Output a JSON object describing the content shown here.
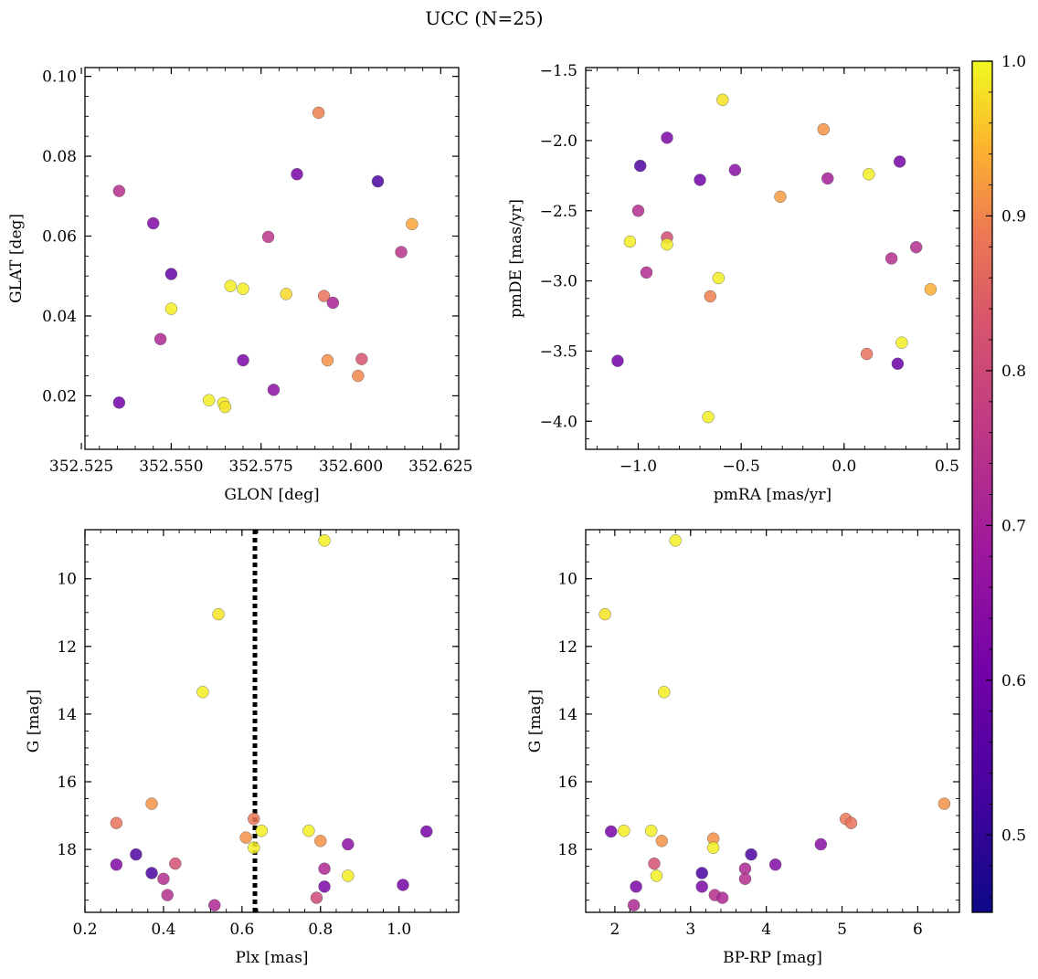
{
  "figure": {
    "title": "UCC (N=25)"
  },
  "colorbar": {
    "min": 0.45,
    "max": 1.0,
    "ticks": [
      "0.5",
      "0.6",
      "0.7",
      "0.8",
      "0.9",
      "1.0"
    ],
    "tick_values": [
      0.5,
      0.6,
      0.7,
      0.8,
      0.9,
      1.0
    ],
    "colormap": "plasma"
  },
  "chart_data": [
    {
      "type": "scatter",
      "id": "glon-glat",
      "xlabel": "GLON [deg]",
      "ylabel": "GLAT [deg]",
      "xlim": [
        352.526,
        352.63
      ],
      "ylim": [
        0.0066,
        0.1022
      ],
      "xticks": [
        352.525,
        352.55,
        352.575,
        352.6,
        352.625
      ],
      "xtick_labels": [
        "352.525",
        "352.550",
        "352.575",
        "352.600",
        "352.625"
      ],
      "yticks": [
        0.02,
        0.04,
        0.06,
        0.08,
        0.1
      ],
      "ytick_labels": [
        "0.02",
        "0.04",
        "0.06",
        "0.08",
        "0.10"
      ],
      "points": [
        {
          "x": 352.5355,
          "y": 0.0713,
          "p": 0.7
        },
        {
          "x": 352.545,
          "y": 0.0632,
          "p": 0.58
        },
        {
          "x": 352.55,
          "y": 0.0505,
          "p": 0.52
        },
        {
          "x": 352.55,
          "y": 0.0418,
          "p": 0.99
        },
        {
          "x": 352.547,
          "y": 0.0342,
          "p": 0.68
        },
        {
          "x": 352.5355,
          "y": 0.0183,
          "p": 0.55
        },
        {
          "x": 352.585,
          "y": 0.0755,
          "p": 0.56
        },
        {
          "x": 352.6075,
          "y": 0.0737,
          "p": 0.47
        },
        {
          "x": 352.591,
          "y": 0.0909,
          "p": 0.88
        },
        {
          "x": 352.617,
          "y": 0.063,
          "p": 0.92
        },
        {
          "x": 352.614,
          "y": 0.056,
          "p": 0.71
        },
        {
          "x": 352.577,
          "y": 0.0598,
          "p": 0.72
        },
        {
          "x": 352.5665,
          "y": 0.0475,
          "p": 0.99
        },
        {
          "x": 352.57,
          "y": 0.0468,
          "p": 0.99
        },
        {
          "x": 352.582,
          "y": 0.0455,
          "p": 0.97
        },
        {
          "x": 352.5925,
          "y": 0.045,
          "p": 0.86
        },
        {
          "x": 352.595,
          "y": 0.0433,
          "p": 0.67
        },
        {
          "x": 352.5935,
          "y": 0.0289,
          "p": 0.9
        },
        {
          "x": 352.603,
          "y": 0.0292,
          "p": 0.8
        },
        {
          "x": 352.602,
          "y": 0.025,
          "p": 0.89
        },
        {
          "x": 352.57,
          "y": 0.0289,
          "p": 0.57
        },
        {
          "x": 352.5785,
          "y": 0.0215,
          "p": 0.6
        },
        {
          "x": 352.5605,
          "y": 0.0189,
          "p": 0.99
        },
        {
          "x": 352.5645,
          "y": 0.0182,
          "p": 0.99
        },
        {
          "x": 352.565,
          "y": 0.0172,
          "p": 0.98
        }
      ]
    },
    {
      "type": "scatter",
      "id": "pmra-pmde",
      "xlabel": "pmRA [mas/yr]",
      "ylabel": "pmDE [mas/yr]",
      "xlim": [
        -1.255,
        0.56
      ],
      "ylim": [
        -4.2,
        -1.48
      ],
      "xticks": [
        -1.0,
        -0.5,
        0.0,
        0.5
      ],
      "xtick_labels": [
        "−1.0",
        "−0.5",
        "0.0",
        "0.5"
      ],
      "yticks": [
        -4.0,
        -3.5,
        -3.0,
        -2.5,
        -2.0,
        -1.5
      ],
      "ytick_labels": [
        "−4.0",
        "−3.5",
        "−3.0",
        "−2.5",
        "−2.0",
        "−1.5"
      ],
      "points": [
        {
          "x": -0.59,
          "y": -1.71,
          "p": 0.98
        },
        {
          "x": -0.1,
          "y": -1.92,
          "p": 0.9
        },
        {
          "x": -0.86,
          "y": -1.98,
          "p": 0.57
        },
        {
          "x": -0.99,
          "y": -2.18,
          "p": 0.48
        },
        {
          "x": -0.53,
          "y": -2.21,
          "p": 0.6
        },
        {
          "x": 0.12,
          "y": -2.24,
          "p": 0.99
        },
        {
          "x": 0.27,
          "y": -2.15,
          "p": 0.56
        },
        {
          "x": -0.7,
          "y": -2.28,
          "p": 0.55
        },
        {
          "x": -0.08,
          "y": -2.27,
          "p": 0.66
        },
        {
          "x": -0.31,
          "y": -2.4,
          "p": 0.91
        },
        {
          "x": -1.0,
          "y": -2.5,
          "p": 0.7
        },
        {
          "x": -1.04,
          "y": -2.72,
          "p": 0.99
        },
        {
          "x": -0.86,
          "y": -2.69,
          "p": 0.78
        },
        {
          "x": -0.86,
          "y": -2.74,
          "p": 0.99
        },
        {
          "x": -0.96,
          "y": -2.94,
          "p": 0.69
        },
        {
          "x": 0.35,
          "y": -2.76,
          "p": 0.7
        },
        {
          "x": 0.23,
          "y": -2.84,
          "p": 0.7
        },
        {
          "x": -0.61,
          "y": -2.98,
          "p": 0.99
        },
        {
          "x": -0.65,
          "y": -3.11,
          "p": 0.88
        },
        {
          "x": 0.42,
          "y": -3.06,
          "p": 0.93
        },
        {
          "x": 0.11,
          "y": -3.52,
          "p": 0.86
        },
        {
          "x": 0.28,
          "y": -3.44,
          "p": 0.99
        },
        {
          "x": -1.1,
          "y": -3.57,
          "p": 0.55
        },
        {
          "x": 0.26,
          "y": -3.59,
          "p": 0.53
        },
        {
          "x": -0.66,
          "y": -3.97,
          "p": 0.99
        }
      ]
    },
    {
      "type": "scatter",
      "id": "plx-g",
      "xlabel": "Plx [mas]",
      "ylabel": "G [mag]",
      "xlim": [
        0.2,
        1.152
      ],
      "ylim": [
        19.86,
        8.55
      ],
      "xticks": [
        0.2,
        0.4,
        0.6,
        0.8,
        1.0
      ],
      "xtick_labels": [
        "0.2",
        "0.4",
        "0.6",
        "0.8",
        "1.0"
      ],
      "yticks": [
        10,
        12,
        14,
        16,
        18
      ],
      "ytick_labels": [
        "10",
        "12",
        "14",
        "16",
        "18"
      ],
      "vline": 0.633,
      "points": [
        {
          "x": 0.81,
          "y": 8.87,
          "p": 0.99
        },
        {
          "x": 0.54,
          "y": 11.05,
          "p": 0.98
        },
        {
          "x": 0.5,
          "y": 13.35,
          "p": 0.99
        },
        {
          "x": 0.37,
          "y": 16.65,
          "p": 0.9
        },
        {
          "x": 0.28,
          "y": 17.22,
          "p": 0.86
        },
        {
          "x": 0.63,
          "y": 17.1,
          "p": 0.87
        },
        {
          "x": 0.65,
          "y": 17.45,
          "p": 0.99
        },
        {
          "x": 0.61,
          "y": 17.65,
          "p": 0.9
        },
        {
          "x": 0.77,
          "y": 17.45,
          "p": 0.99
        },
        {
          "x": 0.8,
          "y": 17.75,
          "p": 0.9
        },
        {
          "x": 0.63,
          "y": 17.95,
          "p": 0.99
        },
        {
          "x": 1.07,
          "y": 17.47,
          "p": 0.56
        },
        {
          "x": 0.87,
          "y": 17.85,
          "p": 0.6
        },
        {
          "x": 0.33,
          "y": 18.15,
          "p": 0.48
        },
        {
          "x": 0.28,
          "y": 18.45,
          "p": 0.58
        },
        {
          "x": 0.43,
          "y": 18.42,
          "p": 0.79
        },
        {
          "x": 0.37,
          "y": 18.7,
          "p": 0.47
        },
        {
          "x": 0.4,
          "y": 18.87,
          "p": 0.7
        },
        {
          "x": 0.81,
          "y": 18.57,
          "p": 0.68
        },
        {
          "x": 0.87,
          "y": 18.78,
          "p": 0.99
        },
        {
          "x": 0.81,
          "y": 19.1,
          "p": 0.57
        },
        {
          "x": 1.01,
          "y": 19.05,
          "p": 0.56
        },
        {
          "x": 0.41,
          "y": 19.35,
          "p": 0.7
        },
        {
          "x": 0.79,
          "y": 19.43,
          "p": 0.77
        },
        {
          "x": 0.53,
          "y": 19.65,
          "p": 0.68
        }
      ]
    },
    {
      "type": "scatter",
      "id": "bprp-g",
      "xlabel": "BP-RP [mag]",
      "ylabel": "G [mag]",
      "xlim": [
        1.615,
        6.55
      ],
      "ylim": [
        19.86,
        8.55
      ],
      "xticks": [
        2,
        3,
        4,
        5,
        6
      ],
      "xtick_labels": [
        "2",
        "3",
        "4",
        "5",
        "6"
      ],
      "yticks": [
        10,
        12,
        14,
        16,
        18
      ],
      "ytick_labels": [
        "10",
        "12",
        "14",
        "16",
        "18"
      ],
      "points": [
        {
          "x": 2.8,
          "y": 8.87,
          "p": 0.99
        },
        {
          "x": 1.87,
          "y": 11.05,
          "p": 0.98
        },
        {
          "x": 2.65,
          "y": 13.35,
          "p": 0.99
        },
        {
          "x": 6.35,
          "y": 16.65,
          "p": 0.9
        },
        {
          "x": 5.05,
          "y": 17.1,
          "p": 0.87
        },
        {
          "x": 5.12,
          "y": 17.22,
          "p": 0.86
        },
        {
          "x": 1.95,
          "y": 17.47,
          "p": 0.56
        },
        {
          "x": 2.12,
          "y": 17.45,
          "p": 0.99
        },
        {
          "x": 2.48,
          "y": 17.45,
          "p": 0.99
        },
        {
          "x": 2.62,
          "y": 17.75,
          "p": 0.9
        },
        {
          "x": 3.3,
          "y": 17.68,
          "p": 0.9
        },
        {
          "x": 3.3,
          "y": 17.95,
          "p": 0.99
        },
        {
          "x": 4.72,
          "y": 17.85,
          "p": 0.6
        },
        {
          "x": 3.8,
          "y": 18.15,
          "p": 0.48
        },
        {
          "x": 4.12,
          "y": 18.45,
          "p": 0.58
        },
        {
          "x": 2.52,
          "y": 18.42,
          "p": 0.79
        },
        {
          "x": 3.15,
          "y": 18.7,
          "p": 0.47
        },
        {
          "x": 2.55,
          "y": 18.78,
          "p": 0.99
        },
        {
          "x": 3.72,
          "y": 18.57,
          "p": 0.68
        },
        {
          "x": 3.72,
          "y": 18.87,
          "p": 0.7
        },
        {
          "x": 2.28,
          "y": 19.1,
          "p": 0.57
        },
        {
          "x": 3.15,
          "y": 19.1,
          "p": 0.57
        },
        {
          "x": 3.32,
          "y": 19.35,
          "p": 0.7
        },
        {
          "x": 3.42,
          "y": 19.43,
          "p": 0.68
        },
        {
          "x": 2.25,
          "y": 19.65,
          "p": 0.68
        }
      ]
    }
  ]
}
